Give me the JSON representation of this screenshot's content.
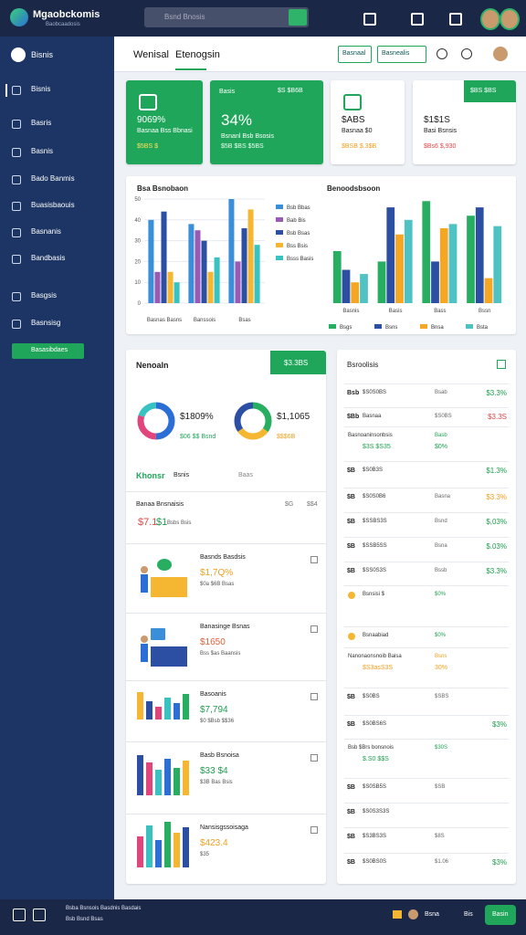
{
  "topbar": {
    "brand": "Mgaobckomis",
    "tagline": "Baobcaadosis",
    "search": "Bsnd Bnosis"
  },
  "sidebar": {
    "header": "Bisnis",
    "items": [
      "Bisnis",
      "Basris",
      "Basnis",
      "Bado Banmis",
      "Buasisbaouis",
      "Basnanis",
      "Bandbasis",
      "Basgsis",
      "Basnsisg"
    ],
    "button": "Basasibdaes"
  },
  "header": {
    "tabs": [
      "Wenisal",
      "Etenogsin"
    ],
    "buttons": [
      "Basnaal",
      "Basnealis"
    ]
  },
  "kpis": [
    {
      "value": "9069%",
      "label": "Basnaa Bss Bbnasi",
      "sub": "$5BS $"
    },
    {
      "tag": "Basis",
      "corner": "$S $B6B",
      "value": "34%",
      "label": "Bsnanl Bsb Bsosis",
      "sub": "$5B $BS $5BS"
    },
    {
      "value": "$ABS",
      "label": "Basnaa $0",
      "sub": "$BSB $.3$B"
    },
    {
      "corner": "$BS $BS",
      "value": "$1$1S",
      "label": "Basi Bsnsis",
      "sub": "$Bs6 $,930"
    }
  ],
  "charts": [
    {
      "type": "bar",
      "title": "Bsa Bsnobaon",
      "categories": [
        "Basnas Basns",
        "Banssois",
        "Bsas"
      ],
      "ylim": [
        0,
        50
      ],
      "yticks": [
        0,
        10,
        20,
        30,
        40,
        50
      ],
      "series": [
        {
          "name": "Bsb Bbas",
          "color": "#3a8fd8",
          "values": [
            40,
            38,
            50
          ]
        },
        {
          "name": "Bab Bis",
          "color": "#9b59b6",
          "values": [
            15,
            35,
            20
          ]
        },
        {
          "name": "Bsb Bsas",
          "color": "#2c4ea3",
          "values": [
            44,
            30,
            36
          ]
        },
        {
          "name": "Bss Bsis",
          "color": "#f5b731",
          "values": [
            15,
            15,
            45
          ]
        },
        {
          "name": "Bsss Basis",
          "color": "#38c2c2",
          "values": [
            10,
            22,
            28
          ]
        }
      ]
    },
    {
      "type": "bar",
      "title": "Benoodsbsoon",
      "categories": [
        "Basnis",
        "Basis",
        "Bass",
        "Bssn"
      ],
      "ylim": [
        0,
        50
      ],
      "series": [
        {
          "name": "Bsgs",
          "color": "#27ae60",
          "values": [
            25,
            20,
            49,
            42
          ]
        },
        {
          "name": "Bsns",
          "color": "#2c4ea3",
          "values": [
            16,
            46,
            20,
            46
          ]
        },
        {
          "name": "Bnsa",
          "color": "#f5a623",
          "values": [
            10,
            33,
            36,
            12
          ]
        },
        {
          "name": "Bsta",
          "color": "#4fc3c3",
          "values": [
            14,
            40,
            38,
            37
          ]
        }
      ]
    }
  ],
  "summary": {
    "title": "Nenoaln",
    "button": "$3.3BS",
    "donuts": [
      {
        "value": "$1809%",
        "sub": "$06 $$ Bsnd",
        "segments": [
          {
            "color": "#2b6fd6",
            "value": 50
          },
          {
            "color": "#e0457b",
            "value": 30
          },
          {
            "color": "#38c2c2",
            "value": 20
          }
        ]
      },
      {
        "value": "$1,1065",
        "sub": "$$$6B",
        "segments": [
          {
            "color": "#27ae60",
            "value": 35
          },
          {
            "color": "#f5b731",
            "value": 30
          },
          {
            "color": "#2c4ea3",
            "value": 35
          }
        ]
      }
    ],
    "tabs": [
      "Khonsr",
      "Bsnis",
      "Baas"
    ],
    "section": "Banaa Bnsnaisis",
    "section_values": [
      "$G",
      "$$4"
    ],
    "mini": [
      "$7.1",
      "$1",
      "Bsbs Bsis"
    ],
    "items": [
      {
        "title": "Basnds Basdsis",
        "value": "$1,7Q%",
        "sub": "$0a $6B Bsas"
      },
      {
        "title": "Banasinge Bsnas",
        "value": "$1650",
        "sub": "Bss $as Baansis"
      },
      {
        "title": "Basoanis",
        "value": "$7,794",
        "sub": "$0 $Bsb $$36"
      },
      {
        "title": "Basb Bsnoisa",
        "value": "$33 $4",
        "sub": "$3B Bas Bsis"
      },
      {
        "title": "Nansisgssoisaga",
        "value": "$423.4",
        "sub": "$35"
      }
    ]
  },
  "portfolio": {
    "title": "Bsroolisis",
    "rows": [
      {
        "code": "Bsb",
        "name": "$S0S0BS",
        "mid": "Bsab",
        "value": "$3.3%",
        "tone": "g"
      },
      {
        "code": "$Bb",
        "name": "Basnaa",
        "mid": "$S0BS",
        "value": "$3.3S",
        "tone": "r"
      },
      {
        "name": "Basnoaninsonbsis",
        "name2": "$3S $S35",
        "mid": "Basb",
        "mid2": "$0%",
        "tone": "g"
      },
      {
        "code": "$B",
        "name": "$S0B3S",
        "value": "$1.3%",
        "tone": "g"
      },
      {
        "code": "$B",
        "name": "$S0S0B6",
        "mid": "Basna",
        "value": "$3.3%",
        "tone": "o"
      },
      {
        "code": "$B",
        "name": "$SSBS3S",
        "mid": "Bsnd",
        "value": "$,03%",
        "tone": "g"
      },
      {
        "code": "$B",
        "name": "$SSB5SS",
        "mid": "Bsna",
        "value": "$.03%",
        "tone": "g"
      },
      {
        "code": "$B",
        "name": "$SS0S3S",
        "mid": "Bssb",
        "value": "$3.3%",
        "tone": "g"
      },
      {
        "name": "Bsnsisi $",
        "mid": "$0%",
        "tone": "g"
      },
      {
        "name": "Bsnaabiad",
        "mid": "$0%",
        "tone": "g"
      },
      {
        "name": "Nanonaonsnoib Baisa",
        "name2": "$S3asS3S",
        "mid": "Bsns",
        "mid2": "30%",
        "tone": "o"
      },
      {
        "code": "$B",
        "name": "$S0BS",
        "mid": "$SBS",
        "tone": "g"
      },
      {
        "code": "$B",
        "name": "$S0BS6S",
        "value": "$3%",
        "tone": "g"
      },
      {
        "name": "Bsb $Brs bonsnois",
        "name2": "$.S0 $$S",
        "mid": "$30S",
        "tone": "g"
      },
      {
        "code": "$B",
        "name": "$S0SB5S",
        "mid": "$SB",
        "tone": "g"
      },
      {
        "code": "$B",
        "name": "$S0S3S3S",
        "tone": "g"
      },
      {
        "code": "$B",
        "name": "$S3BS3S",
        "mid": "$8S",
        "tone": "g"
      },
      {
        "code": "$B",
        "name": "$S0BS0S",
        "mid": "$1.06",
        "value": "$3%",
        "tone": "g"
      }
    ]
  },
  "footer": {
    "lines": [
      "Bsba Bsnsois Basdnis Basdais",
      "Bsb Bsnd Bsas"
    ],
    "user": "Bsna",
    "role": "Bis",
    "button": "Basin"
  }
}
